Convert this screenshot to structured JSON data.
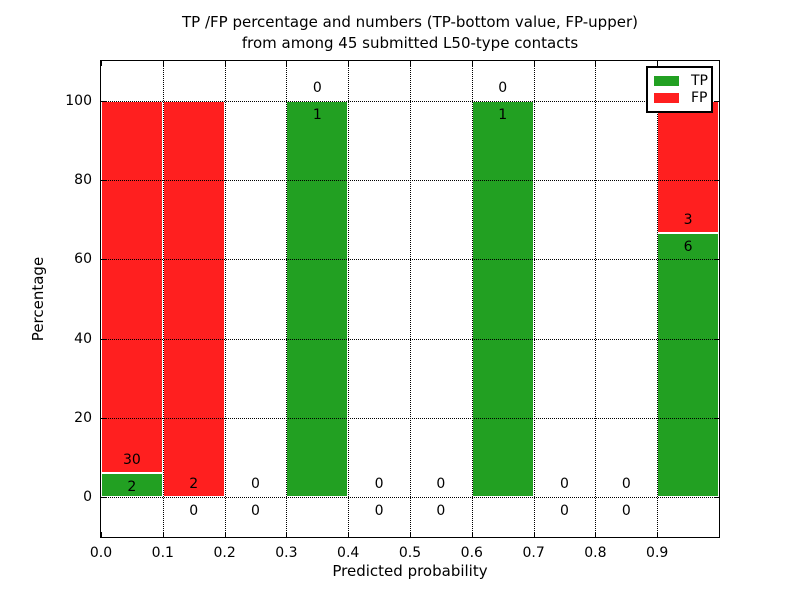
{
  "figure": {
    "title_line1": "TP /FP percentage and numbers (TP-bottom value, FP-upper)",
    "title_line2": "from among 45 submitted L50-type contacts"
  },
  "chart_data": {
    "type": "bar",
    "stacked": true,
    "title": "TP /FP percentage and numbers (TP-bottom value, FP-upper)\nfrom among 45 submitted L50-type contacts",
    "xlabel": "Predicted probability",
    "ylabel": "Percentage",
    "xlim": [
      0.0,
      1.0
    ],
    "ylim": [
      -10,
      110
    ],
    "xticks": [
      "0.0",
      "0.1",
      "0.2",
      "0.3",
      "0.4",
      "0.5",
      "0.6",
      "0.7",
      "0.8",
      "0.9"
    ],
    "yticks": [
      "0",
      "20",
      "40",
      "60",
      "80",
      "100"
    ],
    "grid": true,
    "legend": {
      "position": "upper right",
      "items": [
        {
          "label": "TP",
          "color": "#22a022"
        },
        {
          "label": "FP",
          "color": "#ff1f1f"
        }
      ]
    },
    "value_unit": "percent of bin total; printed numbers are raw counts (TP below segment boundary, FP above)",
    "bins": [
      {
        "range": [
          0.0,
          0.1
        ],
        "tp": 2,
        "fp": 30
      },
      {
        "range": [
          0.1,
          0.2
        ],
        "tp": 0,
        "fp": 2
      },
      {
        "range": [
          0.2,
          0.3
        ],
        "tp": 0,
        "fp": 0
      },
      {
        "range": [
          0.3,
          0.4
        ],
        "tp": 1,
        "fp": 0
      },
      {
        "range": [
          0.4,
          0.5
        ],
        "tp": 0,
        "fp": 0
      },
      {
        "range": [
          0.5,
          0.6
        ],
        "tp": 0,
        "fp": 0
      },
      {
        "range": [
          0.6,
          0.7
        ],
        "tp": 1,
        "fp": 0
      },
      {
        "range": [
          0.7,
          0.8
        ],
        "tp": 0,
        "fp": 0
      },
      {
        "range": [
          0.8,
          0.9
        ],
        "tp": 0,
        "fp": 0
      },
      {
        "range": [
          0.9,
          1.0
        ],
        "tp": 6,
        "fp": 3
      }
    ]
  }
}
